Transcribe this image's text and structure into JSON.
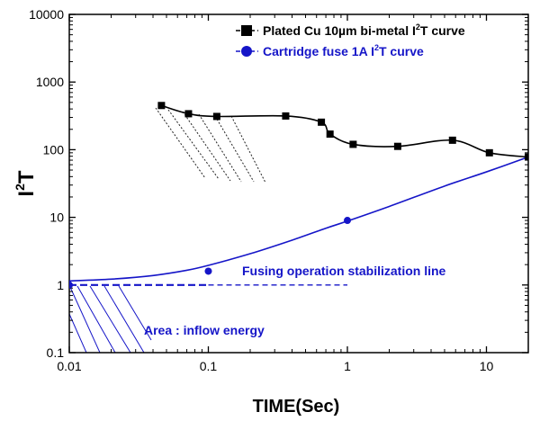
{
  "chart_data": {
    "type": "line",
    "xlabel": "TIME(Sec)",
    "ylabel_main": "I",
    "ylabel_sup": "2",
    "ylabel_tail": "T",
    "xscale": "log",
    "yscale": "log",
    "xlim": [
      0.01,
      20
    ],
    "ylim": [
      0.1,
      10000
    ],
    "x_ticks": [
      0.01,
      0.1,
      1,
      10
    ],
    "x_tick_labels": [
      "0.01",
      "0.1",
      "1",
      "10"
    ],
    "y_ticks": [
      0.1,
      1,
      10,
      100,
      1000,
      10000
    ],
    "y_tick_labels": [
      "0.1",
      "1",
      "10",
      "100",
      "1000",
      "10000"
    ],
    "grid": false,
    "legend_position": "top-right",
    "series": [
      {
        "name_pre": "Plated Cu 10µm bi-metal I",
        "name_sup": "2",
        "name_post": "T curve",
        "color": "#000000",
        "marker": "square",
        "points": [
          [
            0.046,
            450
          ],
          [
            0.072,
            340
          ],
          [
            0.115,
            310
          ],
          [
            0.36,
            315
          ],
          [
            0.65,
            255
          ],
          [
            0.75,
            170
          ],
          [
            1.1,
            120
          ],
          [
            2.3,
            112
          ],
          [
            5.7,
            138
          ],
          [
            10.5,
            90
          ],
          [
            20,
            78
          ]
        ]
      },
      {
        "name_pre": "Cartridge fuse 1A I",
        "name_sup": "2",
        "name_post": "T curve",
        "color": "#1515c8",
        "marker": "circle",
        "points": [
          [
            0.01,
            1.0
          ],
          [
            0.1,
            1.6
          ],
          [
            1.0,
            9.0
          ],
          [
            20,
            78
          ]
        ],
        "curve": [
          [
            0.01,
            1.15
          ],
          [
            0.02,
            1.22
          ],
          [
            0.04,
            1.38
          ],
          [
            0.07,
            1.65
          ],
          [
            0.1,
            1.95
          ],
          [
            0.2,
            2.9
          ],
          [
            0.4,
            4.6
          ],
          [
            0.7,
            6.9
          ],
          [
            1.0,
            8.8
          ],
          [
            2.0,
            14.5
          ],
          [
            5.0,
            29
          ],
          [
            10,
            47
          ],
          [
            20,
            78
          ]
        ]
      }
    ],
    "annotations": {
      "stabilization_label": "Fusing operation stabilization line",
      "area_label": "Area : inflow energy"
    },
    "stabilization_line": {
      "x_start": 0.01,
      "x_end": 1.0,
      "y": 1.0,
      "color": "#1515c8"
    },
    "colors": {
      "axis": "#000000",
      "blue": "#1515c8"
    }
  }
}
